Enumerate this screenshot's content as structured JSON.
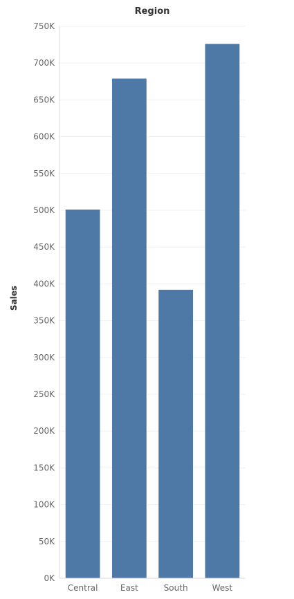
{
  "chart_data": {
    "type": "bar",
    "title": "Region",
    "xlabel": "",
    "ylabel": "Sales",
    "categories": [
      "Central",
      "East",
      "South",
      "West"
    ],
    "values": [
      501000,
      679000,
      392000,
      726000
    ],
    "ylim": [
      0,
      750000
    ],
    "y_ticks": [
      0,
      50000,
      100000,
      150000,
      200000,
      250000,
      300000,
      350000,
      400000,
      450000,
      500000,
      550000,
      600000,
      650000,
      700000,
      750000
    ],
    "y_tick_labels": [
      "0K",
      "50K",
      "100K",
      "150K",
      "200K",
      "250K",
      "300K",
      "350K",
      "400K",
      "450K",
      "500K",
      "550K",
      "600K",
      "650K",
      "700K",
      "750K"
    ],
    "grid": true,
    "bar_color": "#4e79a7"
  }
}
